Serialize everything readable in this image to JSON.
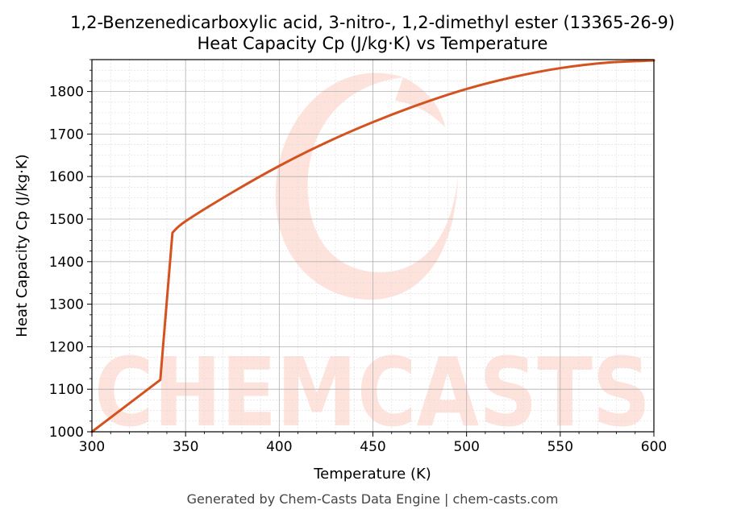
{
  "chart_data": {
    "type": "line",
    "title": "1,2-Benzenedicarboxylic acid, 3-nitro-, 1,2-dimethyl ester (13365-26-9)",
    "subtitle": "Heat Capacity Cp (J/kg·K) vs Temperature",
    "xlabel": "Temperature (K)",
    "ylabel": "Heat Capacity Cp (J/kg·K)",
    "xlim": [
      300,
      600
    ],
    "ylim": [
      1000,
      1875
    ],
    "xticks": [
      300,
      350,
      400,
      450,
      500,
      550,
      600
    ],
    "yticks": [
      1000,
      1100,
      1200,
      1300,
      1400,
      1500,
      1600,
      1700,
      1800
    ],
    "grid": true,
    "legend": "none",
    "series": [
      {
        "color": "#d4521f",
        "x": [
          300,
          336.5,
          343,
          350,
          375,
          400,
          425,
          450,
          475,
          500,
          525,
          550,
          575,
          600
        ],
        "y": [
          1000,
          1122,
          1468,
          1495,
          1563,
          1625,
          1680,
          1728,
          1770,
          1806,
          1834,
          1855,
          1868,
          1873
        ]
      }
    ]
  },
  "watermark": "CHEMCASTS",
  "footer": "Generated by Chem-Casts Data Engine | chem-casts.com",
  "colors": {
    "line": "#d4521f",
    "watermark": "#fde3dc",
    "grid": "#b0b0b0"
  }
}
